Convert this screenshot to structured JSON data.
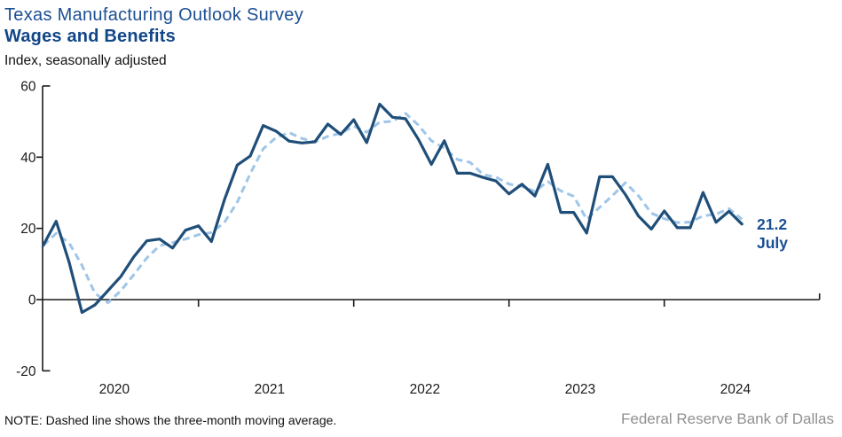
{
  "header": {
    "title": "Texas Manufacturing Outlook Survey",
    "subtitle": "Wages and Benefits",
    "axis_label": "Index, seasonally adjusted"
  },
  "chart_data": {
    "type": "line",
    "title": "Texas Manufacturing Outlook Survey — Wages and Benefits",
    "ylabel": "Index, seasonally adjusted",
    "frequency": "monthly",
    "x_start": "2020-01",
    "x_end": "2024-07",
    "ylim": [
      -20,
      60
    ],
    "y_ticks": [
      60,
      40,
      20,
      0,
      -20
    ],
    "x_tick_labels": [
      "2020",
      "2021",
      "2022",
      "2023",
      "2024"
    ],
    "grid": "zero-line-only",
    "legend_position": "none",
    "series": [
      {
        "name": "Wages and benefits index",
        "style": "solid",
        "color": "#1f4e79",
        "values": [
          15.2,
          22.0,
          10.5,
          -3.6,
          -1.5,
          2.5,
          6.5,
          12.0,
          16.5,
          17.0,
          14.5,
          19.5,
          20.7,
          16.3,
          28.0,
          37.8,
          40.3,
          48.9,
          47.3,
          44.5,
          44.0,
          44.3,
          49.3,
          46.4,
          50.5,
          44.1,
          54.9,
          51.2,
          50.8,
          45.0,
          38.0,
          44.6,
          35.5,
          35.5,
          34.3,
          33.3,
          29.7,
          32.4,
          29.1,
          38.0,
          24.5,
          24.5,
          18.7,
          34.5,
          34.5,
          29.5,
          23.5,
          19.8,
          24.9,
          20.2,
          20.2,
          30.1,
          21.7,
          24.8,
          21.2
        ]
      },
      {
        "name": "Three-month moving average",
        "style": "dashed",
        "color": "#9fc5e8",
        "derived": "3-month trailing moving average of the index values"
      }
    ],
    "annotation": {
      "value": "21.2",
      "label": "July"
    }
  },
  "note": {
    "text": "NOTE: Dashed line shows the three-month moving average."
  },
  "footer": {
    "source": "Federal Reserve Bank of Dallas"
  },
  "colors": {
    "title_blue": "#1c4f93",
    "subtitle_blue": "#114687",
    "line_navy": "#1f4e79",
    "line_light_blue": "#9fc5e8",
    "annotation_blue": "#1b4f94",
    "axis_black": "#1a1a1a",
    "source_gray": "#909090"
  }
}
